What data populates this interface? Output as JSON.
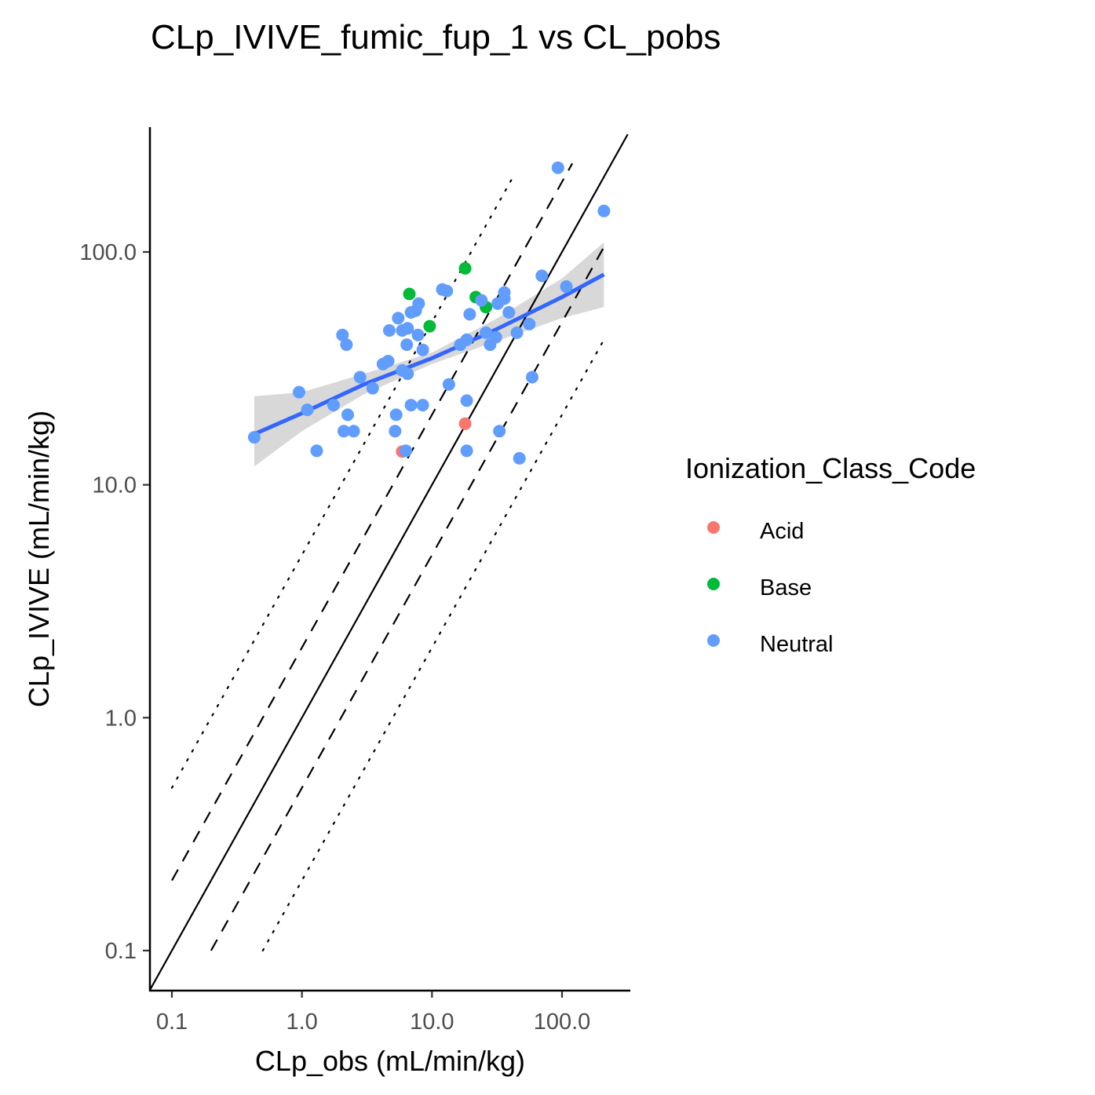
{
  "chart_data": {
    "type": "scatter",
    "title": "CLp_IVIVE_fumic_fup_1 vs CL_pobs",
    "xlabel": "CLp_obs (mL/min/kg)",
    "ylabel": "CLp_IVIVE (mL/min/kg)",
    "x_scale": "log10",
    "y_scale": "log10",
    "xlim": [
      0.068,
      320
    ],
    "ylim": [
      0.068,
      320
    ],
    "x_ticks": [
      0.1,
      1,
      10,
      100
    ],
    "x_tick_labels": [
      "0.1",
      "1.0",
      "10.0",
      "100.0"
    ],
    "y_ticks": [
      0.1,
      1,
      10,
      100
    ],
    "y_tick_labels": [
      "0.1",
      "1.0",
      "10.0",
      "100.0"
    ],
    "grid": false,
    "legend": {
      "title": "Ionization_Class_Code",
      "placement": "right",
      "entries": [
        {
          "label": "Acid",
          "color": "#F8766D"
        },
        {
          "label": "Base",
          "color": "#00BA38"
        },
        {
          "label": "Neutral",
          "color": "#619CFF"
        }
      ]
    },
    "reference_lines": [
      {
        "style": "solid",
        "label": "",
        "x": [
          0.068,
          320
        ],
        "y": [
          0.068,
          320
        ]
      },
      {
        "style": "dashed",
        "label": "",
        "x": [
          0.1,
          120
        ],
        "y": [
          0.2,
          240
        ]
      },
      {
        "style": "dashed",
        "label": "",
        "x": [
          0.2,
          210
        ],
        "y": [
          0.1,
          105
        ]
      },
      {
        "style": "dotted",
        "label": "",
        "x": [
          0.1,
          42
        ],
        "y": [
          0.5,
          210
        ]
      },
      {
        "style": "dotted",
        "label": "",
        "x": [
          0.5,
          210
        ],
        "y": [
          0.1,
          42
        ]
      }
    ],
    "fit": {
      "method": "lm",
      "color": "#3366FF",
      "band_color": "#BEBEBE",
      "x": [
        0.43,
        1.0,
        3.0,
        10.0,
        30.0,
        100.0,
        210.0
      ],
      "y": [
        16.5,
        20.3,
        27.0,
        35.0,
        46.0,
        64.0,
        80.0
      ],
      "lower": [
        12.0,
        17.0,
        24.5,
        33.0,
        41.0,
        52.0,
        58.0
      ],
      "upper": [
        24.0,
        25.0,
        30.0,
        37.0,
        51.0,
        77.0,
        110.0
      ]
    },
    "series": [
      {
        "name": "Acid",
        "color": "#F8766D",
        "points": [
          [
            5.9,
            13.9
          ],
          [
            18.0,
            18.3
          ]
        ]
      },
      {
        "name": "Base",
        "color": "#00BA38",
        "points": [
          [
            6.7,
            66.0
          ],
          [
            9.6,
            48.0
          ],
          [
            18.0,
            85.0
          ],
          [
            21.7,
            64.0
          ],
          [
            26.0,
            58.0
          ]
        ]
      },
      {
        "name": "Neutral",
        "color": "#619CFF",
        "points": [
          [
            0.43,
            16.0
          ],
          [
            0.95,
            25.0
          ],
          [
            1.1,
            21.0
          ],
          [
            1.3,
            14.0
          ],
          [
            1.75,
            22.0
          ],
          [
            2.05,
            44.0
          ],
          [
            2.2,
            40.0
          ],
          [
            2.25,
            20.0
          ],
          [
            2.1,
            17.0
          ],
          [
            2.5,
            17.0
          ],
          [
            2.8,
            29.0
          ],
          [
            3.5,
            26.0
          ],
          [
            4.2,
            33.0
          ],
          [
            4.6,
            34.0
          ],
          [
            4.7,
            46.0
          ],
          [
            5.2,
            17.0
          ],
          [
            5.3,
            20.0
          ],
          [
            5.5,
            52.0
          ],
          [
            5.9,
            31.0
          ],
          [
            5.9,
            46.0
          ],
          [
            6.3,
            14.0
          ],
          [
            6.4,
            40.0
          ],
          [
            6.5,
            47.0
          ],
          [
            6.5,
            30.0
          ],
          [
            6.9,
            55.0
          ],
          [
            6.9,
            22.0
          ],
          [
            7.5,
            56.0
          ],
          [
            7.9,
            60.0
          ],
          [
            7.8,
            44.0
          ],
          [
            8.5,
            38.0
          ],
          [
            8.5,
            22.0
          ],
          [
            12.0,
            69.0
          ],
          [
            13.0,
            68.0
          ],
          [
            13.5,
            27.0
          ],
          [
            16.5,
            40.0
          ],
          [
            18.5,
            23.0
          ],
          [
            18.5,
            14.0
          ],
          [
            18.5,
            42.0
          ],
          [
            19.5,
            54.0
          ],
          [
            24.0,
            62.0
          ],
          [
            26.0,
            45.0
          ],
          [
            28.0,
            40.0
          ],
          [
            31.0,
            43.0
          ],
          [
            32.0,
            60.0
          ],
          [
            33.0,
            17.0
          ],
          [
            36.0,
            67.0
          ],
          [
            36.0,
            63.0
          ],
          [
            39.0,
            55.0
          ],
          [
            45.0,
            45.0
          ],
          [
            47.0,
            13.0
          ],
          [
            56.0,
            49.0
          ],
          [
            59.0,
            29.0
          ],
          [
            70.0,
            79.0
          ],
          [
            93.0,
            230.0
          ],
          [
            108.0,
            71.0
          ],
          [
            210.0,
            150.0
          ]
        ]
      }
    ]
  }
}
